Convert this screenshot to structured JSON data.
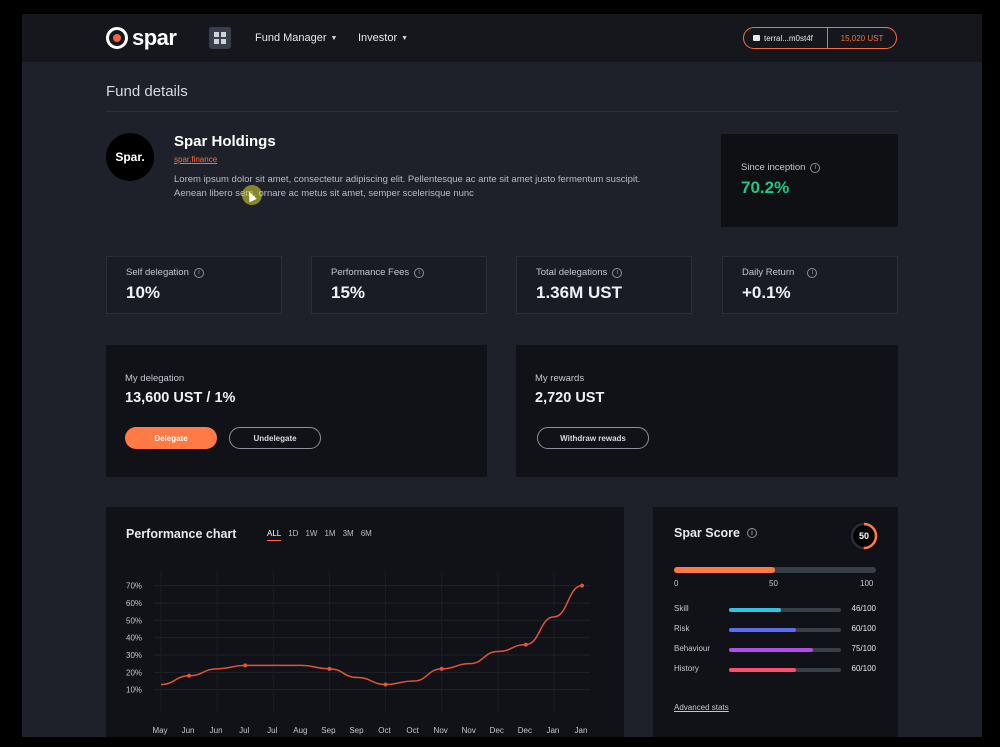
{
  "header": {
    "logo_text": "spar",
    "nav": [
      {
        "label": "Fund Manager"
      },
      {
        "label": "Investor"
      }
    ],
    "wallet": {
      "address": "terral...m0st4f",
      "balance": "15,020 UST"
    }
  },
  "page": {
    "title": "Fund details"
  },
  "fund": {
    "avatar_text": "Spar.",
    "name": "Spar Holdings",
    "link": "spar.finance",
    "description": "Lorem ipsum dolor sit amet, consectetur adipiscing elit. Pellentesque ac ante sit amet justo fermentum suscipit. Aenean libero sem, ornare ac metus sit amet, semper scelerisque nunc"
  },
  "since_inception": {
    "label": "Since inception",
    "value": "70.2%"
  },
  "stats": [
    {
      "label": "Self delegation",
      "value": "10%"
    },
    {
      "label": "Performance Fees",
      "value": "15%"
    },
    {
      "label": "Total delegations",
      "value": "1.36M UST"
    },
    {
      "label": "Daily Return",
      "value": "+0.1%"
    }
  ],
  "delegation": {
    "label": "My delegation",
    "value": "13,600 UST / 1%",
    "delegate_label": "Delegate",
    "undelegate_label": "Undelegate"
  },
  "rewards": {
    "label": "My rewards",
    "value": "2,720 UST",
    "withdraw_label": "Withdraw rewads"
  },
  "performance": {
    "title": "Performance chart",
    "ranges": [
      "ALL",
      "1D",
      "1W",
      "1M",
      "3M",
      "6M"
    ],
    "active_range": "ALL"
  },
  "chart_data": {
    "type": "line",
    "title": "Performance chart",
    "xlabel": "",
    "ylabel": "",
    "x": [
      "May",
      "Jun",
      "Jun",
      "Jul",
      "Jul",
      "Aug",
      "Sep",
      "Sep",
      "Oct",
      "Oct",
      "Nov",
      "Nov",
      "Dec",
      "Dec",
      "Jan",
      "Jan"
    ],
    "y_ticks": [
      "70%",
      "60%",
      "50%",
      "40%",
      "30%",
      "20%",
      "10%"
    ],
    "ylim": [
      0,
      75
    ],
    "series": [
      {
        "values": [
          13,
          18,
          22,
          24,
          24,
          24,
          22,
          17,
          13,
          15,
          22,
          25,
          32,
          36,
          52,
          70
        ]
      }
    ],
    "markers_at": [
      1,
      3,
      6,
      8,
      10,
      13,
      15
    ],
    "grid": true,
    "color": "#e0553a"
  },
  "score": {
    "title": "Spar Score",
    "value": "50",
    "max": 100,
    "score_value": 50,
    "scale": [
      "0",
      "50",
      "100"
    ],
    "metrics": [
      {
        "label": "Skill",
        "value": "46/100",
        "level": 46,
        "color": "#2fc3e8"
      },
      {
        "label": "Risk",
        "value": "60/100",
        "level": 60,
        "color": "#5a6cf0"
      },
      {
        "label": "Behaviour",
        "value": "75/100",
        "level": 75,
        "color": "#b04de8"
      },
      {
        "label": "History",
        "value": "60/100",
        "level": 60,
        "color": "#ff4d6d"
      }
    ],
    "advanced_label": "Advanced stats"
  }
}
